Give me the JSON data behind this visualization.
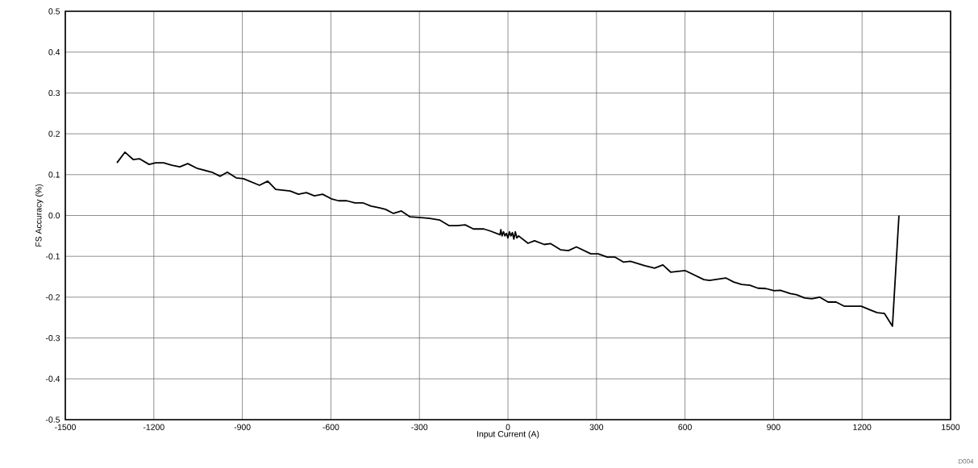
{
  "chart_data": {
    "type": "line",
    "xlabel": "Input Current (A)",
    "ylabel": "FS Accuracy (%)",
    "annotations": [
      "D004"
    ],
    "xlim": [
      -1500,
      1500
    ],
    "ylim": [
      -0.5,
      0.5
    ],
    "xticks": [
      -1500,
      -1200,
      -900,
      -600,
      -300,
      0,
      300,
      600,
      900,
      1200,
      1500
    ],
    "yticks": [
      {
        "value": -0.5,
        "label": "-0.5"
      },
      {
        "value": -0.4,
        "label": "-0.4"
      },
      {
        "value": -0.3,
        "label": "-0.3"
      },
      {
        "value": -0.2,
        "label": "-0.2"
      },
      {
        "value": -0.1,
        "label": "-0.1"
      },
      {
        "value": 0,
        "label": "0.0"
      },
      {
        "value": 0.1,
        "label": "0.1"
      },
      {
        "value": 0.2,
        "label": "0.2"
      },
      {
        "value": 0.3,
        "label": "0.3"
      },
      {
        "value": 0.4,
        "label": "0.4"
      },
      {
        "value": 0.5,
        "label": "0.5"
      }
    ],
    "grid": true,
    "marker": "none",
    "line_style": "solid",
    "series": [
      {
        "color": "#000000",
        "x": [
          -1325,
          -1298,
          -1270,
          -1249,
          -1216,
          -1194,
          -1167,
          -1139,
          -1112,
          -1085,
          -1052,
          -1003,
          -975,
          -951,
          -921,
          -896,
          -842,
          -814,
          -787,
          -738,
          -710,
          -683,
          -656,
          -628,
          -596,
          -574,
          -546,
          -519,
          -492,
          -464,
          -437,
          -415,
          -388,
          -361,
          -333,
          -295,
          -265,
          -232,
          -199,
          -172,
          -145,
          -117,
          -82,
          -60,
          -27,
          -24,
          -20,
          -15,
          -10,
          -5,
          0,
          5,
          10,
          15,
          20,
          25,
          30,
          36,
          68,
          90,
          123,
          145,
          178,
          205,
          232,
          281,
          306,
          336,
          363,
          391,
          415,
          464,
          497,
          525,
          552,
          601,
          664,
          683,
          738,
          765,
          792,
          820,
          847,
          874,
          902,
          923,
          956,
          978,
          1005,
          1030,
          1057,
          1085,
          1112,
          1139,
          1197,
          1230,
          1251,
          1276,
          1303,
          1325
        ],
        "values": [
          0.129,
          0.155,
          0.137,
          0.139,
          0.125,
          0.129,
          0.129,
          0.123,
          0.119,
          0.127,
          0.115,
          0.106,
          0.096,
          0.106,
          0.092,
          0.09,
          0.074,
          0.084,
          0.064,
          0.06,
          0.052,
          0.056,
          0.048,
          0.052,
          0.04,
          0.036,
          0.036,
          0.031,
          0.031,
          0.023,
          0.019,
          0.015,
          0.005,
          0.011,
          -0.003,
          -0.005,
          -0.007,
          -0.011,
          -0.025,
          -0.025,
          -0.023,
          -0.033,
          -0.033,
          -0.038,
          -0.047,
          -0.035,
          -0.05,
          -0.04,
          -0.05,
          -0.044,
          -0.055,
          -0.04,
          -0.05,
          -0.042,
          -0.058,
          -0.04,
          -0.055,
          -0.05,
          -0.068,
          -0.062,
          -0.071,
          -0.069,
          -0.084,
          -0.086,
          -0.077,
          -0.094,
          -0.094,
          -0.102,
          -0.102,
          -0.114,
          -0.112,
          -0.123,
          -0.129,
          -0.121,
          -0.139,
          -0.135,
          -0.157,
          -0.159,
          -0.153,
          -0.163,
          -0.169,
          -0.171,
          -0.178,
          -0.179,
          -0.184,
          -0.183,
          -0.191,
          -0.194,
          -0.202,
          -0.204,
          -0.2,
          -0.212,
          -0.212,
          -0.222,
          -0.222,
          -0.232,
          -0.238,
          -0.24,
          -0.271,
          0.0
        ]
      }
    ]
  }
}
